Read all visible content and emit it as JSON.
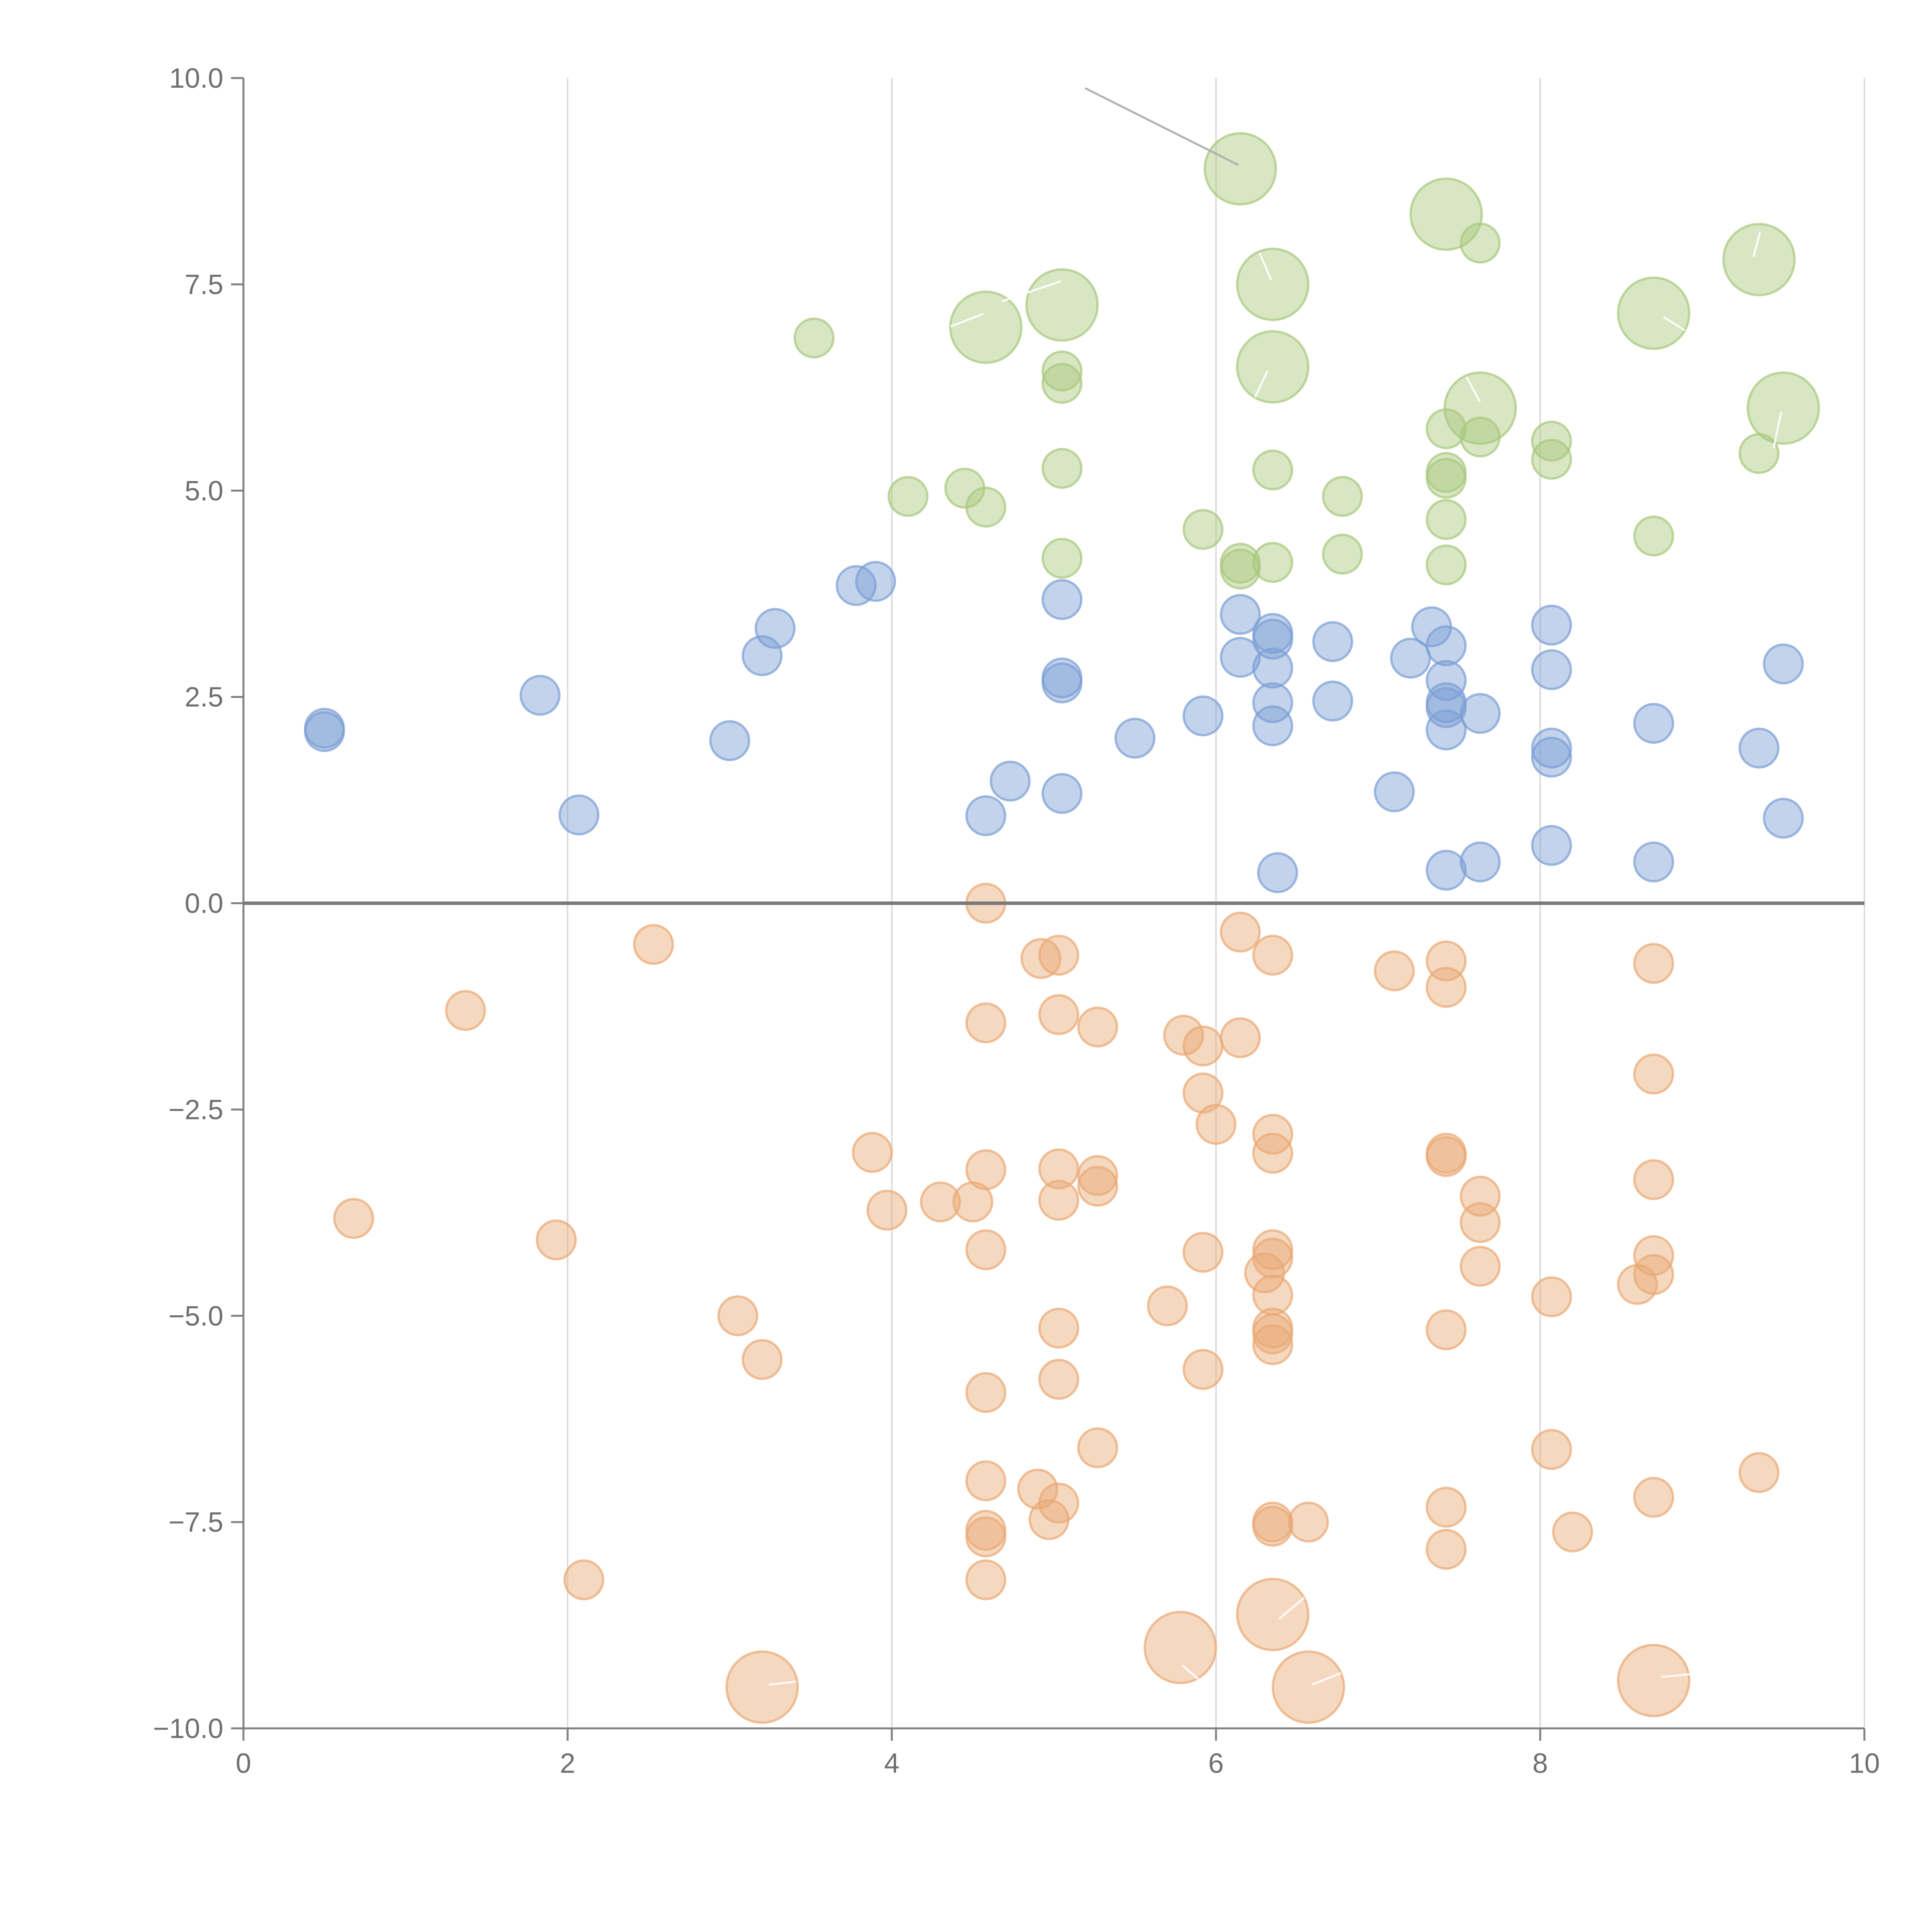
{
  "chart_data": {
    "type": "scatter",
    "title": "",
    "xlabel": "",
    "ylabel": "",
    "xlim": [
      0,
      10
    ],
    "ylim": [
      -10,
      10
    ],
    "x_ticks": [
      0,
      2,
      4,
      6,
      8,
      10
    ],
    "x_tick_labels": [
      "0",
      "2",
      "4",
      "6",
      "8",
      "10"
    ],
    "y_ticks": [
      10,
      7.5,
      5,
      2.5,
      0,
      -2.5,
      -5,
      -7.5,
      -10
    ],
    "y_tick_labels": [
      "10.0",
      "7.5",
      "5.0",
      "2.5",
      "0.0",
      "−2.5",
      "−5.0",
      "−7.5",
      "−10.0"
    ],
    "grid": "vertical",
    "zero_line": true,
    "series": [
      {
        "name": "green",
        "color": "#a8c87c",
        "points": [
          [
            6.15,
            8.9,
            2
          ],
          [
            7.42,
            8.35,
            2
          ],
          [
            7.63,
            8.0,
            1
          ],
          [
            9.35,
            7.8,
            2
          ],
          [
            4.58,
            6.98,
            2
          ],
          [
            5.05,
            7.25,
            2
          ],
          [
            6.35,
            7.5,
            2
          ],
          [
            8.7,
            7.15,
            2
          ],
          [
            3.52,
            6.85,
            1
          ],
          [
            5.05,
            6.45,
            1
          ],
          [
            5.05,
            6.3,
            1
          ],
          [
            6.35,
            6.5,
            2
          ],
          [
            7.63,
            6.0,
            2
          ],
          [
            9.5,
            6.0,
            2
          ],
          [
            7.42,
            5.75,
            1
          ],
          [
            7.63,
            5.65,
            1
          ],
          [
            8.07,
            5.6,
            1
          ],
          [
            8.07,
            5.38,
            1
          ],
          [
            9.35,
            5.45,
            1
          ],
          [
            5.05,
            5.27,
            1
          ],
          [
            6.35,
            5.25,
            1
          ],
          [
            7.42,
            5.22,
            1
          ],
          [
            7.42,
            5.15,
            1
          ],
          [
            4.1,
            4.93,
            1
          ],
          [
            4.45,
            5.03,
            1
          ],
          [
            4.58,
            4.8,
            1
          ],
          [
            6.78,
            4.93,
            1
          ],
          [
            7.42,
            4.65,
            1
          ],
          [
            5.92,
            4.53,
            1
          ],
          [
            8.7,
            4.45,
            1
          ],
          [
            5.05,
            4.18,
            1
          ],
          [
            6.15,
            4.12,
            1
          ],
          [
            6.15,
            4.05,
            1
          ],
          [
            6.35,
            4.13,
            1
          ],
          [
            6.78,
            4.23,
            1
          ],
          [
            7.42,
            4.1,
            1
          ]
        ]
      },
      {
        "name": "blue",
        "color": "#7a9ed4",
        "points": [
          [
            3.78,
            3.85,
            1
          ],
          [
            3.9,
            3.9,
            1
          ],
          [
            3.28,
            3.33,
            1
          ],
          [
            3.2,
            3.0,
            1
          ],
          [
            5.05,
            3.68,
            1
          ],
          [
            6.15,
            3.5,
            1
          ],
          [
            6.35,
            3.27,
            1
          ],
          [
            6.35,
            3.2,
            1
          ],
          [
            6.72,
            3.17,
            1
          ],
          [
            7.33,
            3.35,
            1
          ],
          [
            7.42,
            3.12,
            1
          ],
          [
            7.2,
            2.97,
            1
          ],
          [
            8.07,
            3.37,
            1
          ],
          [
            6.15,
            2.98,
            1
          ],
          [
            6.35,
            2.85,
            1
          ],
          [
            8.07,
            2.83,
            1
          ],
          [
            9.5,
            2.9,
            1
          ],
          [
            5.05,
            2.73,
            1
          ],
          [
            5.05,
            2.67,
            1
          ],
          [
            7.42,
            2.7,
            1
          ],
          [
            1.83,
            2.52,
            1
          ],
          [
            0.5,
            2.12,
            1
          ],
          [
            0.5,
            2.08,
            1
          ],
          [
            6.35,
            2.43,
            1
          ],
          [
            6.72,
            2.45,
            1
          ],
          [
            7.42,
            2.43,
            1
          ],
          [
            7.42,
            2.37,
            1
          ],
          [
            7.63,
            2.3,
            1
          ],
          [
            5.92,
            2.27,
            1
          ],
          [
            6.35,
            2.15,
            1
          ],
          [
            7.42,
            2.1,
            1
          ],
          [
            8.7,
            2.18,
            1
          ],
          [
            3.0,
            1.97,
            1
          ],
          [
            5.5,
            2.0,
            1
          ],
          [
            8.07,
            1.88,
            1
          ],
          [
            8.07,
            1.77,
            1
          ],
          [
            9.35,
            1.88,
            1
          ],
          [
            4.73,
            1.48,
            1
          ],
          [
            5.05,
            1.33,
            1
          ],
          [
            7.1,
            1.35,
            1
          ],
          [
            2.07,
            1.07,
            1
          ],
          [
            4.58,
            1.06,
            1
          ],
          [
            9.5,
            1.03,
            1
          ],
          [
            8.07,
            0.7,
            1
          ],
          [
            7.63,
            0.5,
            1
          ],
          [
            8.7,
            0.5,
            1
          ],
          [
            7.42,
            0.4,
            1
          ],
          [
            6.38,
            0.37,
            1
          ]
        ]
      },
      {
        "name": "orange",
        "color": "#e9a873",
        "points": [
          [
            4.58,
            0.0,
            1
          ],
          [
            6.15,
            -0.35,
            1
          ],
          [
            2.53,
            -0.5,
            1
          ],
          [
            4.92,
            -0.67,
            1
          ],
          [
            5.03,
            -0.63,
            1
          ],
          [
            6.35,
            -0.63,
            1
          ],
          [
            7.1,
            -0.82,
            1
          ],
          [
            7.42,
            -0.7,
            1
          ],
          [
            8.7,
            -0.73,
            1
          ],
          [
            7.42,
            -1.02,
            1
          ],
          [
            1.37,
            -1.3,
            1
          ],
          [
            4.58,
            -1.45,
            1
          ],
          [
            5.03,
            -1.35,
            1
          ],
          [
            5.27,
            -1.5,
            1
          ],
          [
            5.8,
            -1.6,
            1
          ],
          [
            5.92,
            -1.73,
            1
          ],
          [
            6.15,
            -1.63,
            1
          ],
          [
            8.7,
            -2.07,
            1
          ],
          [
            5.92,
            -2.3,
            1
          ],
          [
            6.0,
            -2.68,
            1
          ],
          [
            6.35,
            -2.8,
            1
          ],
          [
            6.35,
            -3.03,
            1
          ],
          [
            3.88,
            -3.02,
            1
          ],
          [
            7.42,
            -3.03,
            1
          ],
          [
            7.42,
            -3.07,
            1
          ],
          [
            4.58,
            -3.23,
            1
          ],
          [
            5.03,
            -3.22,
            1
          ],
          [
            5.27,
            -3.3,
            1
          ],
          [
            5.27,
            -3.43,
            1
          ],
          [
            8.7,
            -3.35,
            1
          ],
          [
            7.63,
            -3.55,
            1
          ],
          [
            3.97,
            -3.72,
            1
          ],
          [
            4.3,
            -3.62,
            1
          ],
          [
            4.5,
            -3.62,
            1
          ],
          [
            5.03,
            -3.6,
            1
          ],
          [
            0.68,
            -3.82,
            1
          ],
          [
            7.63,
            -3.87,
            1
          ],
          [
            1.93,
            -4.08,
            1
          ],
          [
            4.58,
            -4.2,
            1
          ],
          [
            5.92,
            -4.23,
            1
          ],
          [
            6.35,
            -4.2,
            1
          ],
          [
            6.35,
            -4.3,
            1
          ],
          [
            8.7,
            -4.27,
            1
          ],
          [
            7.63,
            -4.4,
            1
          ],
          [
            6.3,
            -4.48,
            1
          ],
          [
            8.6,
            -4.62,
            1
          ],
          [
            8.7,
            -4.5,
            1
          ],
          [
            6.35,
            -4.75,
            1
          ],
          [
            8.07,
            -4.77,
            1
          ],
          [
            5.7,
            -4.88,
            1
          ],
          [
            3.05,
            -5.0,
            1
          ],
          [
            5.03,
            -5.15,
            1
          ],
          [
            6.35,
            -5.15,
            1
          ],
          [
            6.35,
            -5.22,
            1
          ],
          [
            6.35,
            -5.35,
            1
          ],
          [
            7.42,
            -5.17,
            1
          ],
          [
            3.2,
            -5.53,
            1
          ],
          [
            5.92,
            -5.65,
            1
          ],
          [
            5.03,
            -5.77,
            1
          ],
          [
            4.58,
            -5.93,
            1
          ],
          [
            5.27,
            -6.6,
            1
          ],
          [
            8.07,
            -6.62,
            1
          ],
          [
            9.35,
            -6.9,
            1
          ],
          [
            4.58,
            -7.0,
            1
          ],
          [
            4.9,
            -7.1,
            1
          ],
          [
            5.03,
            -7.27,
            1
          ],
          [
            8.7,
            -7.2,
            1
          ],
          [
            7.42,
            -7.32,
            1
          ],
          [
            4.97,
            -7.47,
            1
          ],
          [
            6.35,
            -7.5,
            1
          ],
          [
            6.35,
            -7.55,
            1
          ],
          [
            6.57,
            -7.5,
            1
          ],
          [
            4.58,
            -7.6,
            1
          ],
          [
            4.58,
            -7.68,
            1
          ],
          [
            8.2,
            -7.62,
            1
          ],
          [
            7.42,
            -7.83,
            1
          ],
          [
            2.1,
            -8.2,
            1
          ],
          [
            4.58,
            -8.2,
            1
          ],
          [
            6.35,
            -8.62,
            2
          ],
          [
            5.78,
            -9.02,
            2
          ],
          [
            3.2,
            -9.5,
            2
          ],
          [
            6.57,
            -9.5,
            2
          ],
          [
            8.7,
            -9.42,
            2
          ]
        ]
      }
    ]
  }
}
